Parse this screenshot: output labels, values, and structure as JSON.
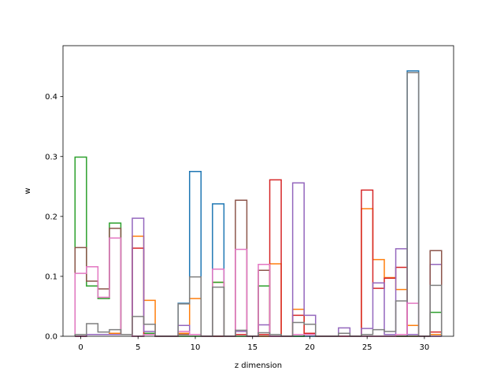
{
  "chart_data": {
    "type": "step",
    "title": "",
    "xlabel": "z dimension",
    "ylabel": "w",
    "xlim": [
      -1.55,
      32.55
    ],
    "ylim": [
      0,
      0.485
    ],
    "xticks": [
      0,
      5,
      10,
      15,
      20,
      25,
      30
    ],
    "yticks": [
      0.0,
      0.1,
      0.2,
      0.3,
      0.4
    ],
    "ytick_labels": [
      "0.0",
      "0.1",
      "0.2",
      "0.3",
      "0.4"
    ],
    "grid": false,
    "legend": "none",
    "bins": 32,
    "series": [
      {
        "color": "#1f77b4",
        "values": [
          0,
          0.003,
          0.003,
          0.005,
          0.003,
          0,
          0.003,
          0,
          0,
          0.055,
          0.275,
          0,
          0.221,
          0,
          0.003,
          0,
          0,
          0,
          0,
          0,
          0,
          0,
          0,
          0,
          0,
          0,
          0,
          0,
          0,
          0.443,
          0,
          0
        ]
      },
      {
        "color": "#ff7f0e",
        "values": [
          0,
          0.003,
          0.003,
          0.005,
          0.003,
          0.167,
          0.06,
          0,
          0,
          0.005,
          0.063,
          0,
          0.09,
          0,
          0.003,
          0,
          0,
          0.121,
          0,
          0.045,
          0.003,
          0,
          0,
          0,
          0,
          0.213,
          0.128,
          0.098,
          0.078,
          0.018,
          0,
          0.003
        ]
      },
      {
        "color": "#2ca02c",
        "values": [
          0.299,
          0.084,
          0.063,
          0.189,
          0.003,
          0,
          0.005,
          0,
          0,
          0,
          0,
          0,
          0.09,
          0,
          0,
          0,
          0.084,
          0,
          0,
          0,
          0.003,
          0,
          0,
          0,
          0,
          0,
          0,
          0,
          0,
          0,
          0,
          0.04
        ]
      },
      {
        "color": "#d62728",
        "values": [
          0,
          0.003,
          0.003,
          0.003,
          0.003,
          0.147,
          0.003,
          0,
          0,
          0.003,
          0.003,
          0,
          0,
          0,
          0.003,
          0,
          0.003,
          0.261,
          0,
          0.035,
          0.005,
          0,
          0,
          0,
          0,
          0.244,
          0.08,
          0.097,
          0.115,
          0.003,
          0,
          0.007
        ]
      },
      {
        "color": "#9467bd",
        "values": [
          0,
          0.003,
          0.003,
          0.003,
          0.003,
          0.197,
          0.008,
          0,
          0,
          0.018,
          0.003,
          0,
          0,
          0,
          0.008,
          0,
          0.019,
          0,
          0,
          0.256,
          0.035,
          0,
          0,
          0.014,
          0,
          0.013,
          0.089,
          0.003,
          0.146,
          0.003,
          0,
          0.12
        ]
      },
      {
        "color": "#8c564b",
        "values": [
          0.148,
          0.092,
          0.079,
          0.18,
          0.003,
          0,
          0.003,
          0,
          0,
          0.003,
          0.003,
          0,
          0,
          0,
          0.227,
          0,
          0.11,
          0,
          0,
          0.003,
          0.003,
          0,
          0,
          0,
          0,
          0,
          0,
          0,
          0,
          0,
          0,
          0.143
        ]
      },
      {
        "color": "#e377c2",
        "values": [
          0.105,
          0.116,
          0.065,
          0.164,
          0.003,
          0,
          0.003,
          0,
          0,
          0.008,
          0.003,
          0,
          0.112,
          0,
          0.145,
          0,
          0.12,
          0,
          0,
          0.003,
          0.003,
          0,
          0,
          0,
          0,
          0,
          0,
          0,
          0.003,
          0.055,
          0,
          0
        ]
      },
      {
        "color": "#7f7f7f",
        "values": [
          0.003,
          0.021,
          0.007,
          0.011,
          0.003,
          0.033,
          0.02,
          0,
          0,
          0.054,
          0.099,
          0,
          0.082,
          0,
          0.01,
          0,
          0.006,
          0.003,
          0,
          0.023,
          0.02,
          0,
          0,
          0.005,
          0,
          0.003,
          0.011,
          0.008,
          0.059,
          0.44,
          0,
          0.085
        ]
      }
    ]
  }
}
